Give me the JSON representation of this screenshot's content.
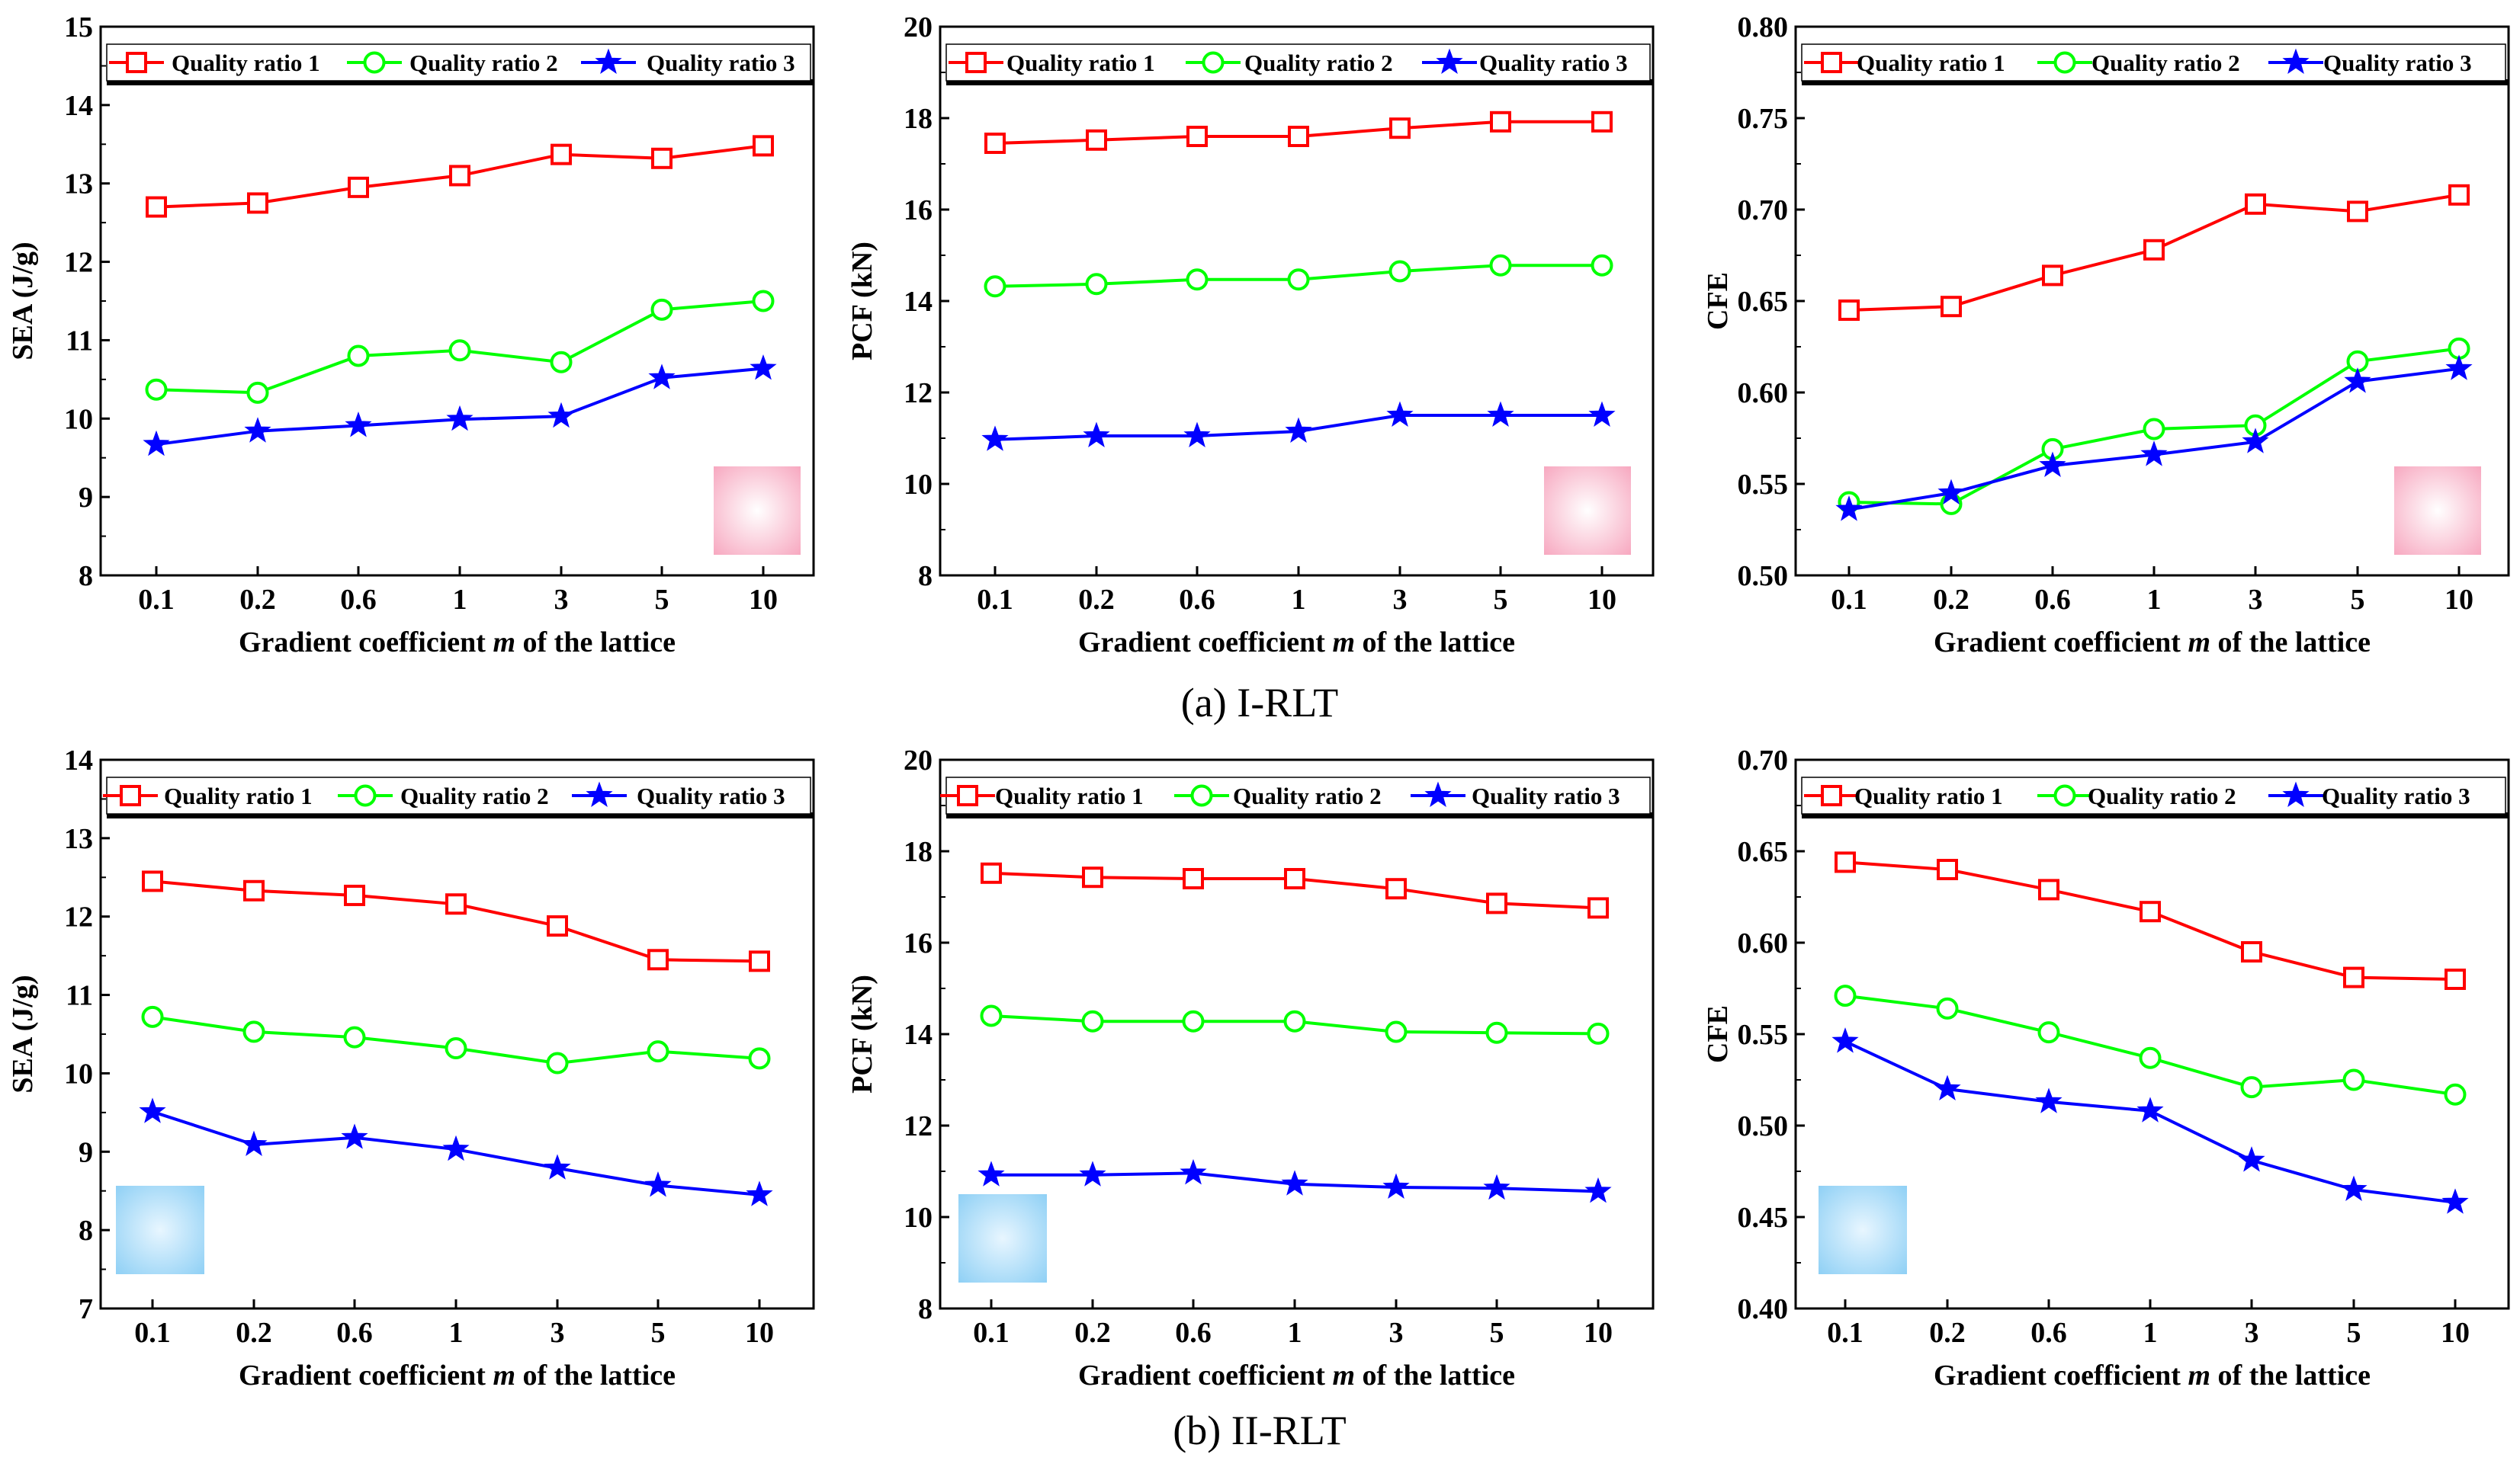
{
  "figure": {
    "caption_a": "(a) I-RLT",
    "caption_b": "(b) II-RLT"
  },
  "colors": {
    "series": [
      "#ff0000",
      "#00ff00",
      "#0000ff"
    ],
    "pink_swatch": "#f7a8c0",
    "blue_swatch": "#8fd0f5"
  },
  "chart_data": [
    {
      "type": "line",
      "panel": "a-SEA",
      "xlabel_pre": "Gradient coefficient ",
      "xlabel_italic": "m",
      "xlabel_post": " of the lattice",
      "ylabel": "SEA (J/g)",
      "categories": [
        "0.1",
        "0.2",
        "0.6",
        "1",
        "3",
        "5",
        "10"
      ],
      "ylim": [
        8,
        15
      ],
      "yticks": [
        "8",
        "9",
        "10",
        "11",
        "12",
        "13",
        "14",
        "15"
      ],
      "swatch": "pink",
      "swatch_pos": "bottom-right",
      "series": [
        {
          "name": "Quality ratio 1",
          "marker": "square",
          "values": [
            12.7,
            12.75,
            12.95,
            13.1,
            13.37,
            13.32,
            13.48
          ]
        },
        {
          "name": "Quality ratio 2",
          "marker": "circle",
          "values": [
            10.37,
            10.33,
            10.8,
            10.87,
            10.72,
            11.39,
            11.5
          ]
        },
        {
          "name": "Quality ratio 3",
          "marker": "star",
          "values": [
            9.67,
            9.84,
            9.91,
            9.99,
            10.03,
            10.52,
            10.64
          ]
        }
      ]
    },
    {
      "type": "line",
      "panel": "a-PCF",
      "xlabel_pre": "Gradient coefficient ",
      "xlabel_italic": "m",
      "xlabel_post": " of the lattice",
      "ylabel": "PCF (kN)",
      "categories": [
        "0.1",
        "0.2",
        "0.6",
        "1",
        "3",
        "5",
        "10"
      ],
      "ylim": [
        8,
        20
      ],
      "yticks": [
        "8",
        "10",
        "12",
        "14",
        "16",
        "18",
        "20"
      ],
      "swatch": "pink",
      "swatch_pos": "bottom-right",
      "series": [
        {
          "name": "Quality ratio 1",
          "marker": "square",
          "values": [
            17.45,
            17.52,
            17.6,
            17.6,
            17.78,
            17.92,
            17.92
          ]
        },
        {
          "name": "Quality ratio 2",
          "marker": "circle",
          "values": [
            14.32,
            14.37,
            14.47,
            14.47,
            14.65,
            14.78,
            14.78
          ]
        },
        {
          "name": "Quality ratio 3",
          "marker": "star",
          "values": [
            10.97,
            11.05,
            11.05,
            11.15,
            11.5,
            11.5,
            11.5
          ]
        }
      ]
    },
    {
      "type": "line",
      "panel": "a-CFE",
      "xlabel_pre": "Gradient coefficient ",
      "xlabel_italic": "m",
      "xlabel_post": " of the lattice",
      "ylabel": "CFE",
      "categories": [
        "0.1",
        "0.2",
        "0.6",
        "1",
        "3",
        "5",
        "10"
      ],
      "ylim": [
        0.5,
        0.8
      ],
      "yticks": [
        "0.50",
        "0.55",
        "0.60",
        "0.65",
        "0.70",
        "0.75",
        "0.80"
      ],
      "swatch": "pink",
      "swatch_pos": "bottom-right",
      "series": [
        {
          "name": "Quality ratio 1",
          "marker": "square",
          "values": [
            0.645,
            0.647,
            0.664,
            0.678,
            0.703,
            0.699,
            0.708
          ]
        },
        {
          "name": "Quality ratio 2",
          "marker": "circle",
          "values": [
            0.54,
            0.539,
            0.569,
            0.58,
            0.582,
            0.617,
            0.624
          ]
        },
        {
          "name": "Quality ratio 3",
          "marker": "star",
          "values": [
            0.536,
            0.545,
            0.56,
            0.566,
            0.573,
            0.606,
            0.613
          ]
        }
      ]
    },
    {
      "type": "line",
      "panel": "b-SEA",
      "xlabel_pre": "Gradient coefficient ",
      "xlabel_italic": "m",
      "xlabel_post": " of the lattice",
      "ylabel": "SEA (J/g)",
      "categories": [
        "0.1",
        "0.2",
        "0.6",
        "1",
        "3",
        "5",
        "10"
      ],
      "ylim": [
        7,
        14
      ],
      "yticks": [
        "7",
        "8",
        "9",
        "10",
        "11",
        "12",
        "13",
        "14"
      ],
      "swatch": "blue",
      "swatch_pos": "bottom-left",
      "series": [
        {
          "name": "Quality ratio 1",
          "marker": "square",
          "values": [
            12.45,
            12.33,
            12.27,
            12.16,
            11.88,
            11.45,
            11.43
          ]
        },
        {
          "name": "Quality ratio 2",
          "marker": "circle",
          "values": [
            10.72,
            10.53,
            10.46,
            10.32,
            10.13,
            10.28,
            10.19
          ]
        },
        {
          "name": "Quality ratio 3",
          "marker": "star",
          "values": [
            9.51,
            9.09,
            9.18,
            9.03,
            8.79,
            8.57,
            8.45
          ]
        }
      ]
    },
    {
      "type": "line",
      "panel": "b-PCF",
      "xlabel_pre": "Gradient coefficient ",
      "xlabel_italic": "m",
      "xlabel_post": " of the lattice",
      "ylabel": "PCF (kN)",
      "categories": [
        "0.1",
        "0.2",
        "0.6",
        "1",
        "3",
        "5",
        "10"
      ],
      "ylim": [
        8,
        20
      ],
      "yticks": [
        "8",
        "10",
        "12",
        "14",
        "16",
        "18",
        "20"
      ],
      "swatch": "blue",
      "swatch_pos": "bottom-left",
      "series": [
        {
          "name": "Quality ratio 1",
          "marker": "square",
          "values": [
            17.52,
            17.43,
            17.4,
            17.4,
            17.18,
            16.86,
            16.76
          ]
        },
        {
          "name": "Quality ratio 2",
          "marker": "circle",
          "values": [
            14.4,
            14.28,
            14.28,
            14.28,
            14.05,
            14.03,
            14.01
          ]
        },
        {
          "name": "Quality ratio 3",
          "marker": "star",
          "values": [
            10.92,
            10.92,
            10.96,
            10.72,
            10.65,
            10.63,
            10.56
          ]
        }
      ]
    },
    {
      "type": "line",
      "panel": "b-CFE",
      "xlabel_pre": "Gradient coefficient ",
      "xlabel_italic": "m",
      "xlabel_post": " of the lattice",
      "ylabel": "CFE",
      "categories": [
        "0.1",
        "0.2",
        "0.6",
        "1",
        "3",
        "5",
        "10"
      ],
      "ylim": [
        0.4,
        0.7
      ],
      "yticks": [
        "0.40",
        "0.45",
        "0.50",
        "0.55",
        "0.60",
        "0.65",
        "0.70"
      ],
      "swatch": "blue",
      "swatch_pos": "bottom-left",
      "series": [
        {
          "name": "Quality ratio 1",
          "marker": "square",
          "values": [
            0.644,
            0.64,
            0.629,
            0.617,
            0.595,
            0.581,
            0.58
          ]
        },
        {
          "name": "Quality ratio 2",
          "marker": "circle",
          "values": [
            0.571,
            0.564,
            0.551,
            0.537,
            0.521,
            0.525,
            0.517
          ]
        },
        {
          "name": "Quality ratio 3",
          "marker": "star",
          "values": [
            0.546,
            0.52,
            0.513,
            0.508,
            0.481,
            0.465,
            0.458
          ]
        }
      ]
    }
  ]
}
